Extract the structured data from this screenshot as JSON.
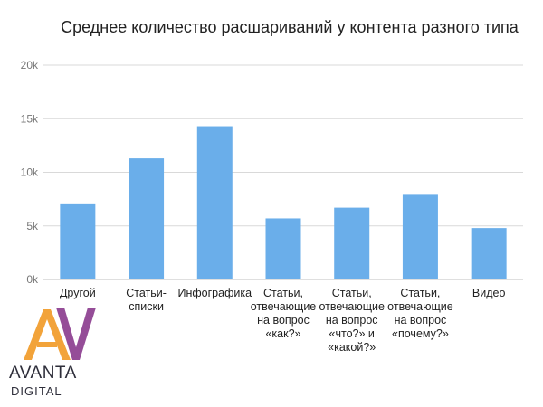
{
  "chart_data": {
    "type": "bar",
    "title": "Среднее количество расшариваний у контента разного типа",
    "categories": [
      [
        "Другой"
      ],
      [
        "Статьи-",
        "списки"
      ],
      [
        "Инфографика"
      ],
      [
        "Статьи,",
        "отвечающие",
        "на вопрос",
        "«как?»"
      ],
      [
        "Статьи,",
        "отвечающие",
        "на вопрос",
        "«что?» и",
        "«какой?»"
      ],
      [
        "Статьи,",
        "отвечающие",
        "на вопрос",
        "«почему?»"
      ],
      [
        "Видео"
      ]
    ],
    "values": [
      7100,
      11300,
      14300,
      5700,
      6700,
      7900,
      4800
    ],
    "ylim": [
      0,
      20000
    ],
    "yticks": [
      0,
      5000,
      10000,
      15000,
      20000
    ],
    "ytick_labels": [
      "0k",
      "5k",
      "10k",
      "15k",
      "20k"
    ],
    "grid": true,
    "bar_color": "#6aaeea"
  },
  "logo": {
    "wordmark": "AVANTA",
    "subtitle": "DIGITAL",
    "colors": {
      "a": "#f2a33a",
      "v": "#8c3e8f"
    }
  }
}
